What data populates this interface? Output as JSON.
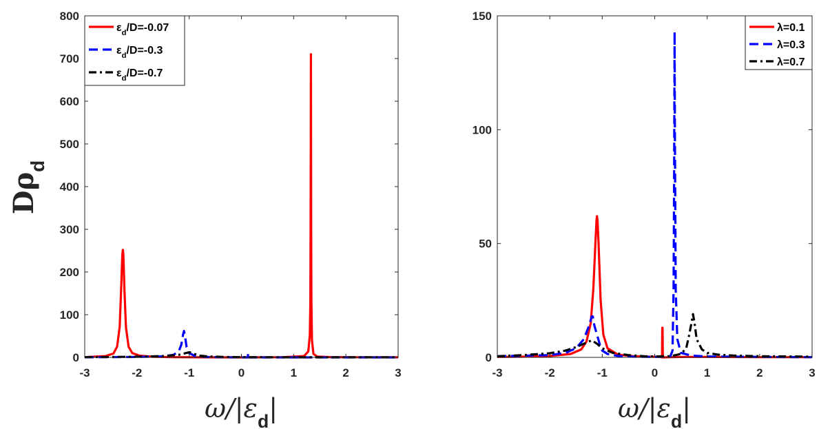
{
  "chart_data": [
    {
      "type": "line",
      "xlabel": "ω/|ε_d|",
      "ylabel": "Dρ_d",
      "xlim": [
        -3,
        3
      ],
      "ylim": [
        0,
        800
      ],
      "xticks": [
        -3,
        -2,
        -1,
        0,
        1,
        2,
        3
      ],
      "yticks": [
        0,
        100,
        200,
        300,
        400,
        500,
        600,
        700,
        800
      ],
      "grid": false,
      "legend_position": "top-left",
      "series": [
        {
          "name": "ε_d/D=-0.07",
          "color": "#ff0000",
          "dash": "solid",
          "peaks": [
            {
              "center": -2.27,
              "height": 252,
              "width": 0.035
            },
            {
              "center": 1.33,
              "height": 710,
              "width": 0.012
            }
          ],
          "x": [
            -3,
            -2.6,
            -2.45,
            -2.38,
            -2.33,
            -2.3,
            -2.28,
            -2.27,
            -2.26,
            -2.24,
            -2.21,
            -2.16,
            -2.09,
            -1.95,
            -1.7,
            -1.3,
            -0.8,
            0,
            0.8,
            1.2,
            1.28,
            1.31,
            1.32,
            1.325,
            1.33,
            1.335,
            1.34,
            1.35,
            1.38,
            1.45,
            1.7,
            2.2,
            3
          ],
          "y": [
            0.5,
            3,
            9,
            25,
            72,
            170,
            240,
            252,
            240,
            160,
            70,
            25,
            10,
            4,
            1.5,
            0.5,
            0.2,
            0,
            0.5,
            3,
            14,
            52,
            130,
            330,
            710,
            330,
            130,
            40,
            8,
            2,
            0.6,
            0.3,
            0.2
          ]
        },
        {
          "name": "ε_d/D=-0.3",
          "color": "#0000ff",
          "dash": "dashed",
          "x": [
            -3,
            -2,
            -1.5,
            -1.3,
            -1.2,
            -1.15,
            -1.12,
            -1.1,
            -1.08,
            -1.05,
            -1.0,
            -0.9,
            -0.7,
            -0.3,
            0.12,
            0.13,
            0.14,
            0.15,
            0.16,
            0.5,
            1,
            2,
            3
          ],
          "y": [
            0.3,
            1,
            2.5,
            6,
            14,
            30,
            52,
            62,
            50,
            24,
            10,
            4,
            1,
            0.3,
            0,
            10,
            10,
            0,
            0,
            0,
            0,
            0,
            0
          ]
        },
        {
          "name": "ε_d/D=-0.7",
          "color": "#000000",
          "dash": "dash-dot",
          "x": [
            -3,
            -2,
            -1.5,
            -1.2,
            -1.1,
            -1.0,
            -0.95,
            -0.9,
            -0.8,
            -0.6,
            -0.3,
            0,
            0.5,
            1,
            2,
            3
          ],
          "y": [
            0.5,
            1.5,
            3,
            6,
            9,
            12,
            11,
            8,
            4,
            2,
            1,
            0.5,
            0.3,
            0.2,
            0.1,
            0.1
          ]
        }
      ]
    },
    {
      "type": "line",
      "xlabel": "ω/|ε_d|",
      "ylabel": "",
      "xlim": [
        -3,
        3
      ],
      "ylim": [
        0,
        150
      ],
      "xticks": [
        -3,
        -2,
        -1,
        0,
        1,
        2,
        3
      ],
      "yticks": [
        0,
        50,
        100,
        150
      ],
      "grid": false,
      "legend_position": "top-right",
      "series": [
        {
          "name": "λ=0.1",
          "color": "#ff0000",
          "dash": "solid",
          "x": [
            -3,
            -2.5,
            -2,
            -1.6,
            -1.4,
            -1.3,
            -1.22,
            -1.17,
            -1.13,
            -1.11,
            -1.1,
            -1.09,
            -1.07,
            -1.03,
            -0.98,
            -0.9,
            -0.7,
            -0.4,
            -0.1,
            0.1,
            0.14,
            0.145,
            0.15,
            0.155,
            0.16,
            0.3,
            0.6,
            1,
            2,
            3
          ],
          "y": [
            0.2,
            0.3,
            0.6,
            1.5,
            3.5,
            7,
            15,
            30,
            50,
            60,
            62,
            60,
            50,
            25,
            10,
            4,
            1.2,
            0.5,
            0.3,
            0.2,
            0,
            13,
            13,
            0,
            0,
            0.1,
            0.2,
            0.2,
            0.1,
            0.1
          ]
        },
        {
          "name": "λ=0.3",
          "color": "#0000ff",
          "dash": "dashed",
          "x": [
            -3,
            -2,
            -1.7,
            -1.5,
            -1.35,
            -1.25,
            -1.2,
            -1.18,
            -1.15,
            -1.1,
            -1.05,
            -1.0,
            -0.9,
            -0.7,
            -0.4,
            -0.1,
            0.1,
            0.3,
            0.34,
            0.36,
            0.37,
            0.38,
            0.385,
            0.4,
            0.43,
            0.5,
            0.7,
            1,
            2,
            3
          ],
          "y": [
            0.5,
            1,
            2,
            4,
            8,
            14,
            18,
            18,
            14,
            10,
            6,
            3,
            1.5,
            0.6,
            0.3,
            0.2,
            0.2,
            0.5,
            3,
            30,
            80,
            143,
            100,
            30,
            8,
            2,
            0.8,
            0.4,
            0.2,
            0.1
          ]
        },
        {
          "name": "λ=0.7",
          "color": "#000000",
          "dash": "dash-dot",
          "x": [
            -3,
            -2.5,
            -2,
            -1.7,
            -1.5,
            -1.35,
            -1.25,
            -1.2,
            -1.1,
            -1.0,
            -0.8,
            -0.5,
            -0.2,
            0,
            0.3,
            0.5,
            0.6,
            0.65,
            0.7,
            0.73,
            0.76,
            0.8,
            0.9,
            1.0,
            1.2,
            1.5,
            2,
            3
          ],
          "y": [
            0.5,
            1,
            1.8,
            3,
            4.5,
            6,
            7,
            7.5,
            6,
            4,
            2,
            1,
            0.5,
            0.4,
            0.5,
            1.5,
            4,
            9,
            15,
            19,
            15,
            8,
            3.5,
            2,
            1.2,
            0.8,
            0.5,
            0.3
          ]
        }
      ]
    }
  ]
}
